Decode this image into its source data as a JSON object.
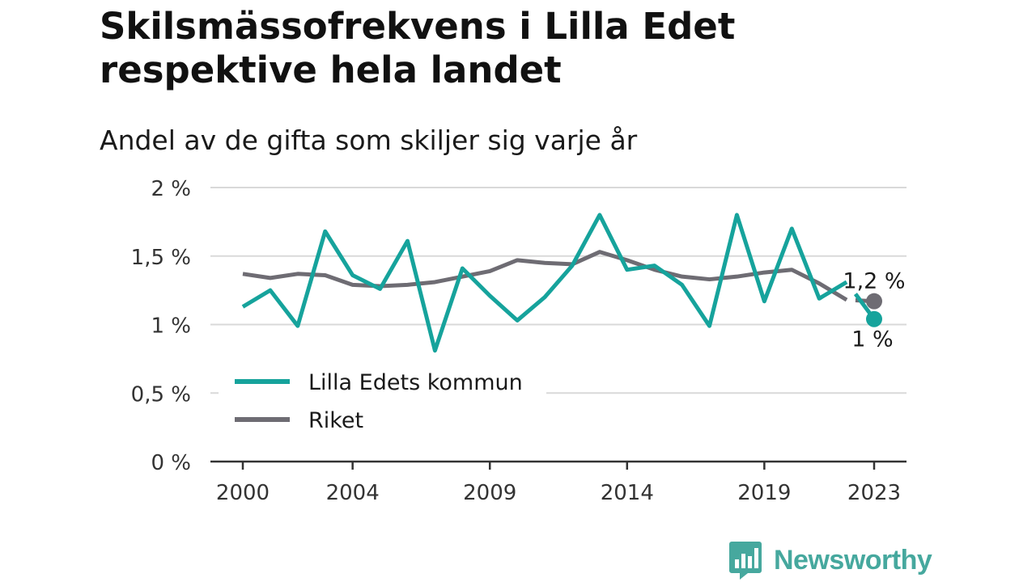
{
  "header": {
    "title": "Skilsmässofrekvens i Lilla Edet respektive hela landet",
    "subtitle": "Andel av de gifta som skiljer sig varje år"
  },
  "brand": {
    "name": "Newsworthy",
    "icon": "newsworthy-logo-icon"
  },
  "colors": {
    "lilla_edet": "#16a39c",
    "riket": "#6e6c73",
    "grid": "#d9d9d9",
    "axis": "#333333"
  },
  "chart_data": {
    "type": "line",
    "title": "Skilsmässofrekvens i Lilla Edet respektive hela landet",
    "subtitle": "Andel av de gifta som skiljer sig varje år",
    "x": [
      2000,
      2001,
      2002,
      2003,
      2004,
      2005,
      2006,
      2007,
      2008,
      2009,
      2010,
      2011,
      2012,
      2013,
      2014,
      2015,
      2016,
      2017,
      2018,
      2019,
      2020,
      2021,
      2022,
      2023
    ],
    "series": [
      {
        "name": "Lilla Edets kommun",
        "color": "#16a39c",
        "values": [
          1.13,
          1.25,
          0.99,
          1.68,
          1.36,
          1.26,
          1.61,
          0.81,
          1.41,
          1.21,
          1.03,
          1.2,
          1.43,
          1.8,
          1.4,
          1.43,
          1.29,
          0.99,
          1.8,
          1.17,
          1.7,
          1.19,
          1.31,
          1.04
        ],
        "end_label": "1 %"
      },
      {
        "name": "Riket",
        "color": "#6e6c73",
        "values": [
          1.37,
          1.34,
          1.37,
          1.36,
          1.29,
          1.28,
          1.29,
          1.31,
          1.35,
          1.39,
          1.47,
          1.45,
          1.44,
          1.53,
          1.47,
          1.4,
          1.35,
          1.33,
          1.35,
          1.38,
          1.4,
          1.3,
          1.18,
          1.17
        ],
        "end_label": "1,2 %"
      }
    ],
    "y_ticks": [
      {
        "value": 0,
        "label": "0 %"
      },
      {
        "value": 0.5,
        "label": "0,5 %"
      },
      {
        "value": 1,
        "label": "1 %"
      },
      {
        "value": 1.5,
        "label": "1,5 %"
      },
      {
        "value": 2,
        "label": "2 %"
      }
    ],
    "x_ticks": [
      {
        "value": 2000,
        "label": "2000"
      },
      {
        "value": 2004,
        "label": "2004"
      },
      {
        "value": 2009,
        "label": "2009"
      },
      {
        "value": 2014,
        "label": "2014"
      },
      {
        "value": 2019,
        "label": "2019"
      },
      {
        "value": 2023,
        "label": "2023"
      }
    ],
    "ylim": [
      0,
      2
    ],
    "xlim": [
      2000,
      2023
    ],
    "grid": true,
    "legend": {
      "position": "bottom-left",
      "entries": [
        "Lilla Edets kommun",
        "Riket"
      ]
    }
  }
}
